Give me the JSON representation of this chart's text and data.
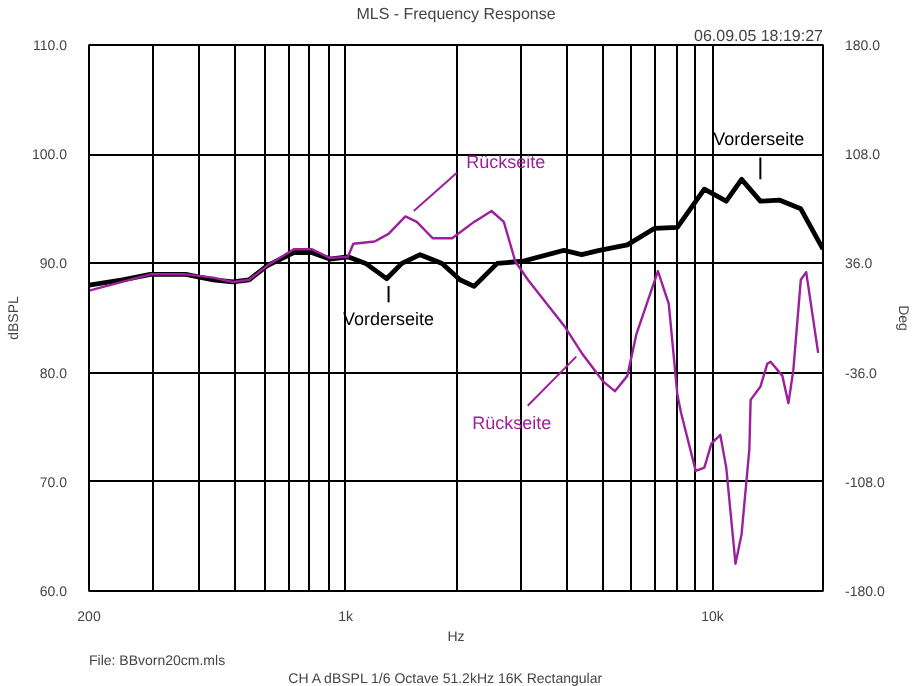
{
  "chart_data": {
    "type": "line",
    "title": "MLS - Frequency Response",
    "subtitle": "06.09.05 18:19:27",
    "ylabel": "dBSPL",
    "y2label": "Deg",
    "xlabel": "Hz",
    "log": "x",
    "grid": true,
    "xlim": [
      200,
      20000
    ],
    "xticks": [
      {
        "value": 200,
        "label": "200"
      },
      {
        "value": 300,
        "label": null
      },
      {
        "value": 400,
        "label": null
      },
      {
        "value": 500,
        "label": null
      },
      {
        "value": 600,
        "label": null
      },
      {
        "value": 700,
        "label": null
      },
      {
        "value": 800,
        "label": null
      },
      {
        "value": 900,
        "label": null
      },
      {
        "value": 1000,
        "label": "1k"
      },
      {
        "value": 2000,
        "label": null
      },
      {
        "value": 3000,
        "label": null
      },
      {
        "value": 4000,
        "label": null
      },
      {
        "value": 5000,
        "label": null
      },
      {
        "value": 6000,
        "label": null
      },
      {
        "value": 7000,
        "label": null
      },
      {
        "value": 8000,
        "label": null
      },
      {
        "value": 9000,
        "label": null
      },
      {
        "value": 10000,
        "label": "10k"
      },
      {
        "value": 20000,
        "label": null
      }
    ],
    "ylim": [
      60,
      110
    ],
    "yticks": [
      {
        "value": 60,
        "label": "60.0"
      },
      {
        "value": 70,
        "label": "70.0"
      },
      {
        "value": 80,
        "label": "80.0"
      },
      {
        "value": 90,
        "label": "90.0"
      },
      {
        "value": 100,
        "label": "100.0"
      },
      {
        "value": 110,
        "label": "110.0"
      }
    ],
    "y2lim": [
      -180,
      180
    ],
    "y2ticks": [
      {
        "value": -180,
        "label": "-180.0"
      },
      {
        "value": -108,
        "label": "-108.0"
      },
      {
        "value": -36,
        "label": "-36.0"
      },
      {
        "value": 36,
        "label": "36.0"
      },
      {
        "value": 108,
        "label": "108.0"
      },
      {
        "value": 180,
        "label": "180.0"
      }
    ],
    "series": [
      {
        "color": "#000000",
        "x": [
          200,
          247,
          294,
          367,
          436,
          493,
          546,
          612,
          723,
          808,
          906,
          1015,
          1135,
          1294,
          1424,
          1597,
          1833,
          2050,
          2240,
          2590,
          3040,
          3940,
          4400,
          4920,
          5860,
          6940,
          8020,
          9500,
          10900,
          12000,
          13500,
          15200,
          17400,
          20000
        ],
        "values": [
          88.0,
          88.5,
          89.0,
          89.0,
          88.5,
          88.3,
          88.5,
          89.8,
          91.0,
          91.0,
          90.4,
          90.6,
          90.0,
          88.6,
          90.0,
          90.8,
          90.0,
          88.5,
          87.9,
          90.0,
          90.2,
          91.2,
          90.8,
          91.2,
          91.7,
          93.2,
          93.3,
          96.8,
          95.7,
          97.7,
          95.7,
          95.8,
          95.0,
          91.3
        ]
      },
      {
        "color": "#9c1f9c",
        "x": [
          200,
          294,
          367,
          436,
          493,
          546,
          612,
          723,
          808,
          906,
          1015,
          1050,
          1200,
          1310,
          1456,
          1564,
          1728,
          1953,
          2240,
          2500,
          2700,
          2900,
          3140,
          3940,
          4400,
          5030,
          5420,
          5860,
          6200,
          7100,
          7600,
          8020,
          8210,
          9000,
          9500,
          9930,
          10500,
          10900,
          11550,
          12000,
          12600,
          12700,
          13500,
          14100,
          14400,
          15500,
          16100,
          16600,
          17400,
          18000,
          19400
        ],
        "values": [
          87.5,
          89.0,
          89.0,
          88.7,
          88.3,
          88.5,
          89.8,
          91.3,
          91.3,
          90.5,
          90.6,
          91.8,
          92.0,
          92.7,
          94.3,
          93.8,
          92.3,
          92.3,
          93.8,
          94.8,
          93.8,
          90.2,
          88.5,
          84.3,
          81.8,
          79.2,
          78.3,
          79.7,
          83.5,
          89.3,
          86.3,
          78.0,
          76.3,
          71.0,
          71.3,
          73.5,
          74.3,
          71.3,
          62.5,
          65.2,
          73.0,
          77.5,
          78.7,
          80.8,
          81.0,
          79.7,
          77.2,
          80.2,
          88.5,
          89.2,
          81.8
        ]
      }
    ],
    "annotations": [
      {
        "text": "Vorderseite",
        "x": 1310,
        "y": 88.6
      },
      {
        "text": "Vorderseite",
        "x": 13500,
        "y": 95.7
      },
      {
        "text": "Rückseite",
        "x": 1500,
        "y": 94.3
      },
      {
        "text": "Rückseite",
        "x": 4400,
        "y": 81.8
      },
      "File: BBvorn20cm.mls",
      "CH A  dBSPL  1/6 Octave  51.2kHz  16K  Rectangular"
    ]
  }
}
